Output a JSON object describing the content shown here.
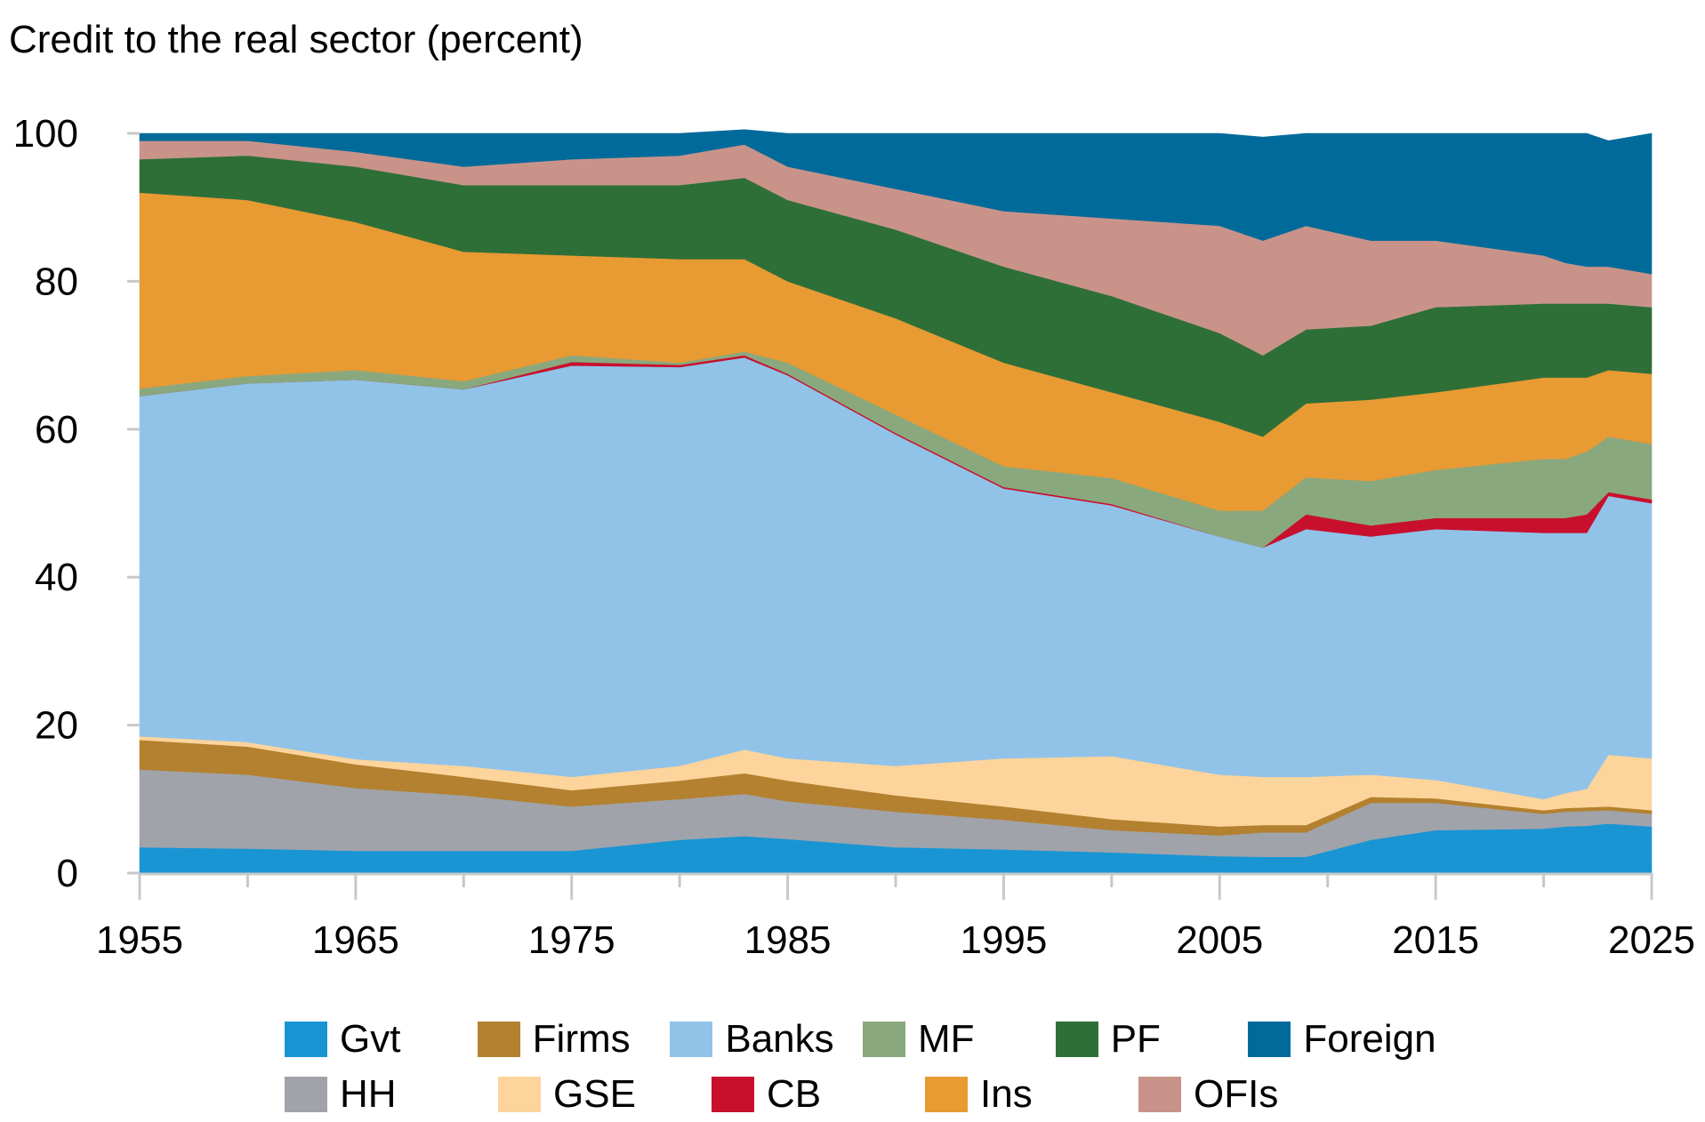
{
  "chart_data": {
    "type": "area",
    "title": "Credit to the real sector (percent)",
    "xlabel": "",
    "ylabel": "",
    "xlim": [
      1955,
      2025
    ],
    "ylim": [
      0,
      100
    ],
    "x_ticks": [
      "1955",
      "1965",
      "1975",
      "1985",
      "1995",
      "2005",
      "2015",
      "2025"
    ],
    "y_ticks": [
      "0",
      "20",
      "40",
      "60",
      "80",
      "100"
    ],
    "stacked": true,
    "grid": false,
    "legend_position": "bottom",
    "x": [
      1955,
      1960,
      1965,
      1970,
      1975,
      1980,
      1983,
      1985,
      1990,
      1995,
      2000,
      2005,
      2007,
      2009,
      2012,
      2015,
      2020,
      2021,
      2022,
      2023,
      2025
    ],
    "series": [
      {
        "name": "Gvt",
        "color": "#1995d4",
        "values": [
          3.5,
          3.3,
          3.0,
          3.0,
          3.0,
          4.5,
          5.0,
          4.6,
          3.5,
          3.2,
          2.8,
          2.3,
          2.2,
          2.2,
          4.5,
          5.8,
          6.0,
          6.3,
          6.4,
          6.7,
          6.3
        ]
      },
      {
        "name": "HH",
        "color": "#a1a3aa",
        "values": [
          10.5,
          10.0,
          8.5,
          7.5,
          6.0,
          5.5,
          5.7,
          5.1,
          4.8,
          4.0,
          3.0,
          2.8,
          3.3,
          3.3,
          5.0,
          3.7,
          2.0,
          2.0,
          2.0,
          1.8,
          1.7
        ]
      },
      {
        "name": "Firms",
        "color": "#b3812f",
        "values": [
          4.0,
          3.8,
          3.2,
          2.5,
          2.2,
          2.5,
          2.8,
          2.8,
          2.2,
          1.8,
          1.5,
          1.2,
          1.0,
          1.0,
          0.8,
          0.6,
          0.5,
          0.5,
          0.5,
          0.5,
          0.5
        ]
      },
      {
        "name": "GSE",
        "color": "#fdd49b",
        "values": [
          0.5,
          0.6,
          0.7,
          1.5,
          1.8,
          2.0,
          3.2,
          3.0,
          4.0,
          6.5,
          8.5,
          7.0,
          6.5,
          6.5,
          3.0,
          2.5,
          1.5,
          2.0,
          2.5,
          7.0,
          7.0
        ]
      },
      {
        "name": "Banks",
        "color": "#91c3e9",
        "values": [
          46.0,
          48.5,
          51.3,
          50.9,
          55.6,
          53.9,
          53.0,
          51.8,
          44.8,
          36.5,
          33.9,
          32.2,
          31.0,
          33.5,
          32.2,
          33.9,
          36.0,
          35.2,
          34.6,
          35.0,
          34.5
        ]
      },
      {
        "name": "CB",
        "color": "#c8102e",
        "values": [
          0.0,
          0.0,
          0.0,
          0.0,
          0.5,
          0.3,
          0.3,
          0.2,
          0.2,
          0.2,
          0.2,
          0.0,
          0.0,
          2.0,
          1.5,
          1.5,
          2.0,
          2.0,
          2.5,
          0.5,
          0.5
        ]
      },
      {
        "name": "MF",
        "color": "#8aa87e",
        "values": [
          1.0,
          1.0,
          1.3,
          1.1,
          0.9,
          0.3,
          0.5,
          1.5,
          2.5,
          2.8,
          3.5,
          3.5,
          5.0,
          5.0,
          6.0,
          6.5,
          8.0,
          8.0,
          8.5,
          7.5,
          7.5
        ]
      },
      {
        "name": "Ins",
        "color": "#e89a33",
        "values": [
          26.5,
          23.8,
          20.0,
          17.5,
          13.5,
          14.0,
          12.5,
          11.0,
          13.0,
          14.0,
          11.6,
          12.0,
          10.0,
          10.0,
          11.0,
          10.5,
          11.0,
          11.0,
          10.0,
          9.0,
          9.5
        ]
      },
      {
        "name": "PF",
        "color": "#2e6f38",
        "values": [
          4.5,
          6.0,
          7.5,
          9.0,
          9.5,
          10.0,
          11.0,
          11.0,
          12.0,
          13.0,
          13.0,
          12.0,
          11.0,
          10.0,
          10.0,
          11.5,
          10.0,
          10.0,
          10.0,
          9.0,
          9.0
        ]
      },
      {
        "name": "OFIs",
        "color": "#c9938a",
        "values": [
          2.5,
          2.0,
          2.0,
          2.5,
          3.5,
          4.0,
          4.5,
          4.5,
          5.5,
          7.5,
          10.5,
          14.5,
          15.5,
          14.0,
          11.5,
          9.0,
          6.5,
          5.5,
          5.0,
          5.0,
          4.5
        ]
      },
      {
        "name": "Foreign",
        "color": "#006b9a",
        "values": [
          1.0,
          1.0,
          2.5,
          4.5,
          3.5,
          3.0,
          2.0,
          4.5,
          7.5,
          10.5,
          11.5,
          12.5,
          14.0,
          12.5,
          14.5,
          14.5,
          16.5,
          17.5,
          18.0,
          17.0,
          19.0
        ]
      }
    ],
    "legend_rows": [
      [
        "Gvt",
        "Firms",
        "Banks",
        "MF",
        "PF",
        "Foreign"
      ],
      [
        "HH",
        "GSE",
        "CB",
        "Ins",
        "OFIs"
      ]
    ]
  }
}
